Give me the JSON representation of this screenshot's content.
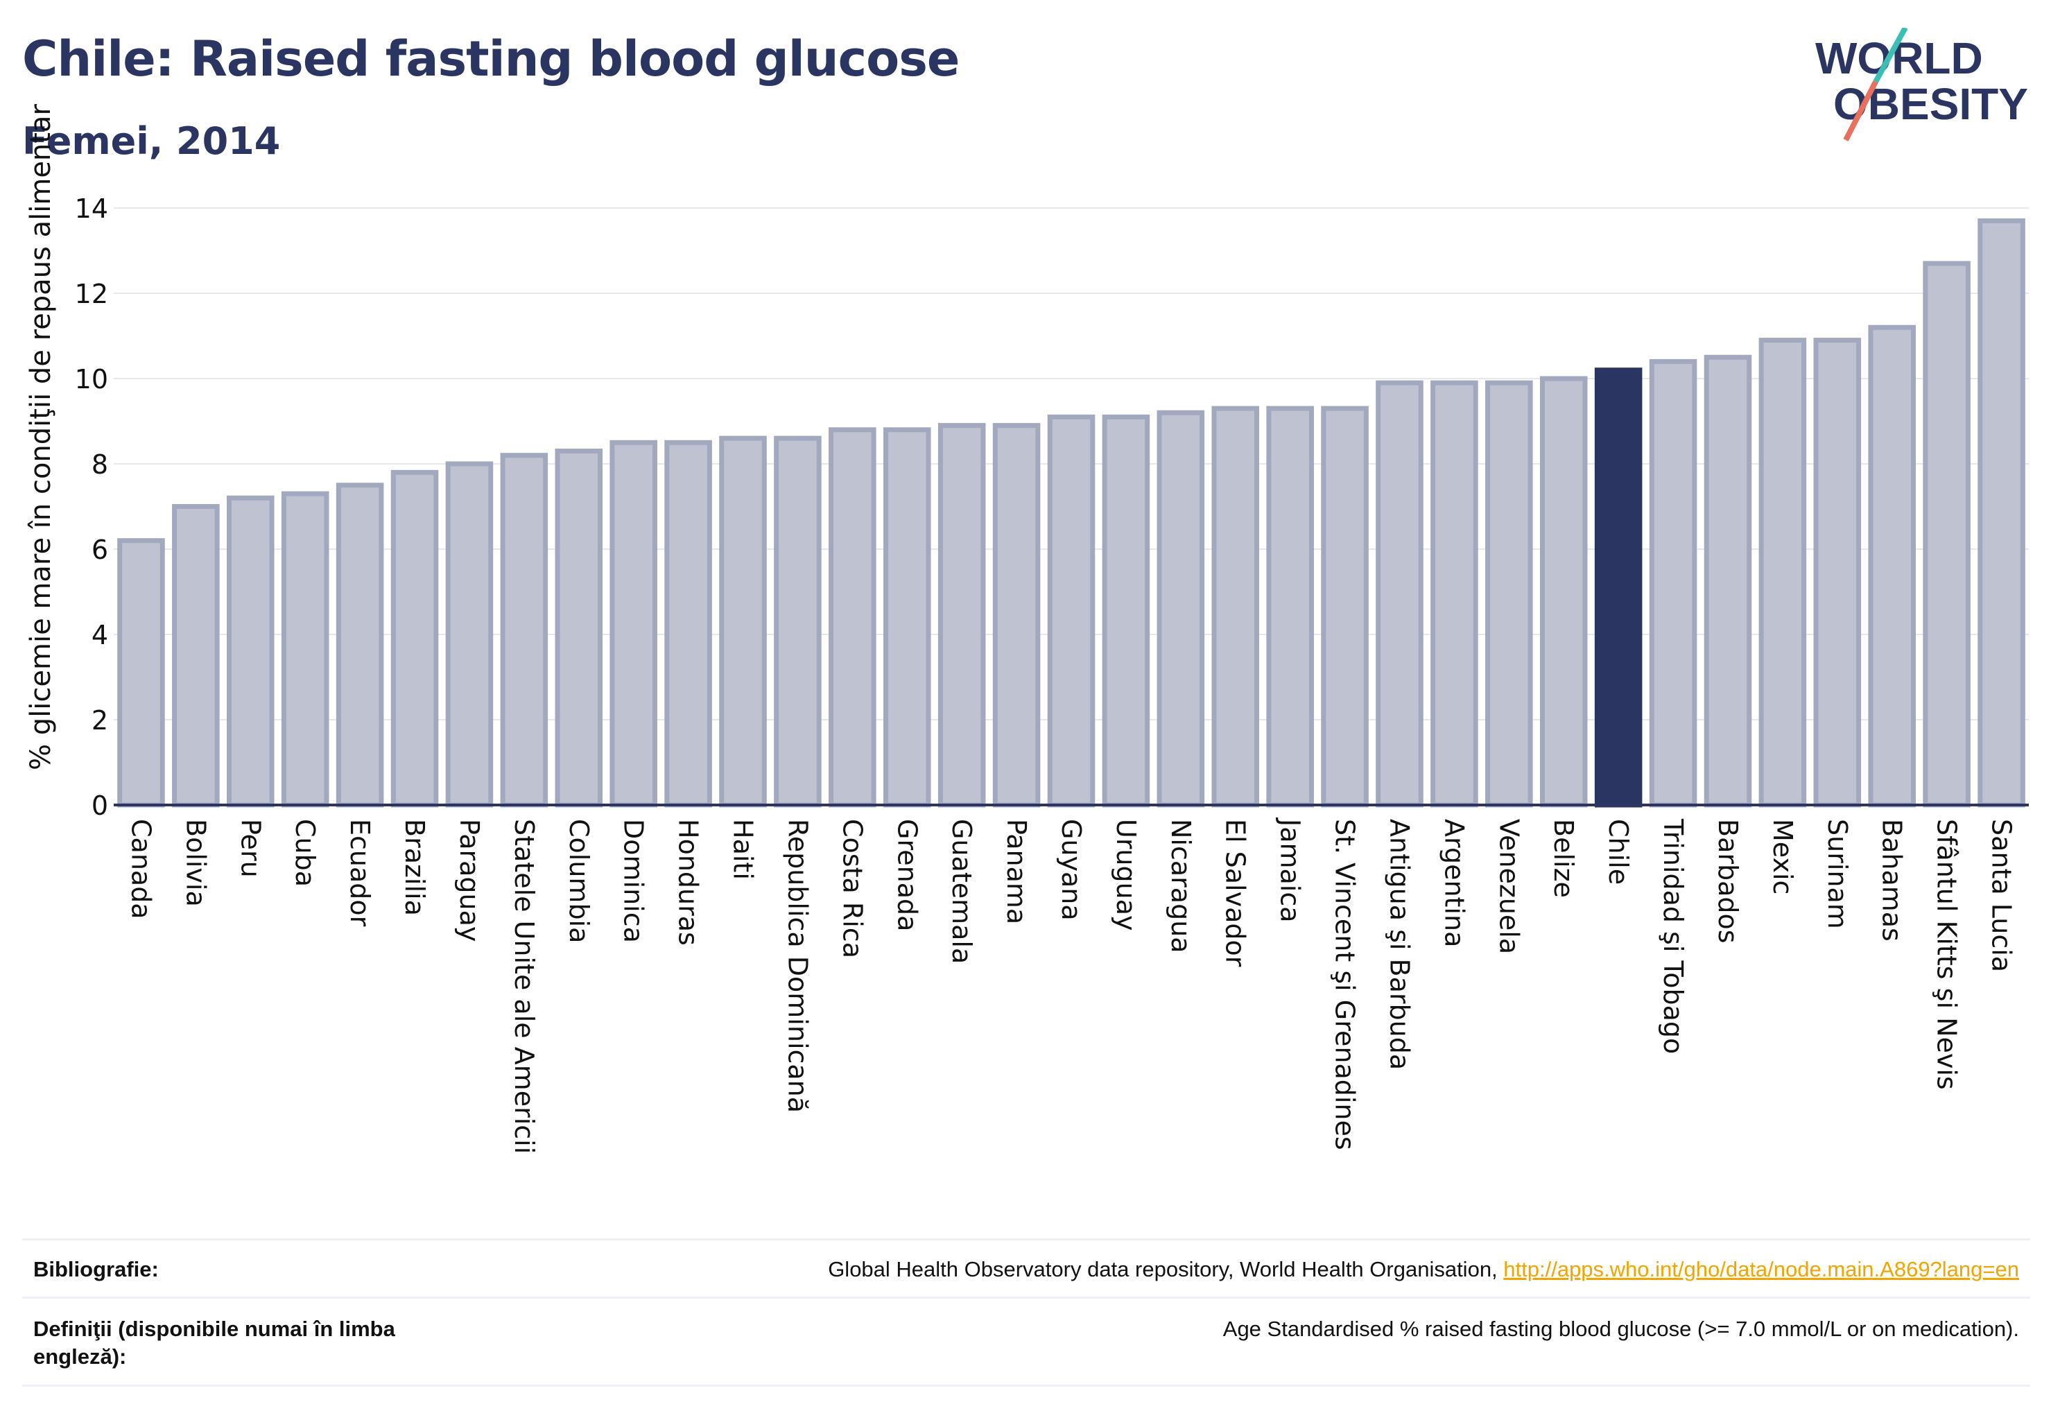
{
  "header": {
    "title": "Chile: Raised fasting blood glucose",
    "subtitle": "Femei, 2014"
  },
  "logo": {
    "line1": "WORLD",
    "line2": "OBESITY"
  },
  "chart_data": {
    "type": "bar",
    "ylabel": "% glicemie mare în condiţii de repaus alimentar",
    "ylim": [
      0,
      14
    ],
    "yticks": [
      0,
      2,
      4,
      6,
      8,
      10,
      12,
      14
    ],
    "grid": true,
    "highlight": "Chile",
    "colors": {
      "bar": "#bfc3d1",
      "bar_edge": "#a2a8bd",
      "highlight": "#2b3562"
    },
    "categories": [
      "Canada",
      "Bolivia",
      "Peru",
      "Cuba",
      "Ecuador",
      "Brazilia",
      "Paraguay",
      "Statele Unite ale Americii",
      "Columbia",
      "Dominica",
      "Honduras",
      "Haiti",
      "Republica Dominicană",
      "Costa Rica",
      "Grenada",
      "Guatemala",
      "Panama",
      "Guyana",
      "Uruguay",
      "Nicaragua",
      "El Salvador",
      "Jamaica",
      "St. Vincent şi Grenadines",
      "Antigua şi Barbuda",
      "Argentina",
      "Venezuela",
      "Belize",
      "Chile",
      "Trinidad şi Tobago",
      "Barbados",
      "Mexic",
      "Surinam",
      "Bahamas",
      "Sfântul Kitts şi Nevis",
      "Santa Lucia"
    ],
    "values": [
      6.2,
      7.0,
      7.2,
      7.3,
      7.5,
      7.8,
      8.0,
      8.2,
      8.3,
      8.5,
      8.5,
      8.6,
      8.6,
      8.8,
      8.8,
      8.9,
      8.9,
      9.1,
      9.1,
      9.2,
      9.3,
      9.3,
      9.3,
      9.9,
      9.9,
      9.9,
      10.0,
      10.2,
      10.4,
      10.5,
      10.9,
      10.9,
      11.2,
      12.7,
      13.7
    ]
  },
  "footer": {
    "bibliography_label": "Bibliografie:",
    "bibliography_text": "Global Health Observatory data repository, World Health Organisation, ",
    "bibliography_link": "http://apps.who.int/gho/data/node.main.A869?lang=en",
    "definitions_label": "Definiţii (disponibile numai în limba engleză):",
    "definitions_text": "Age Standardised % raised fasting blood glucose (>= 7.0 mmol/L or on medication)."
  }
}
